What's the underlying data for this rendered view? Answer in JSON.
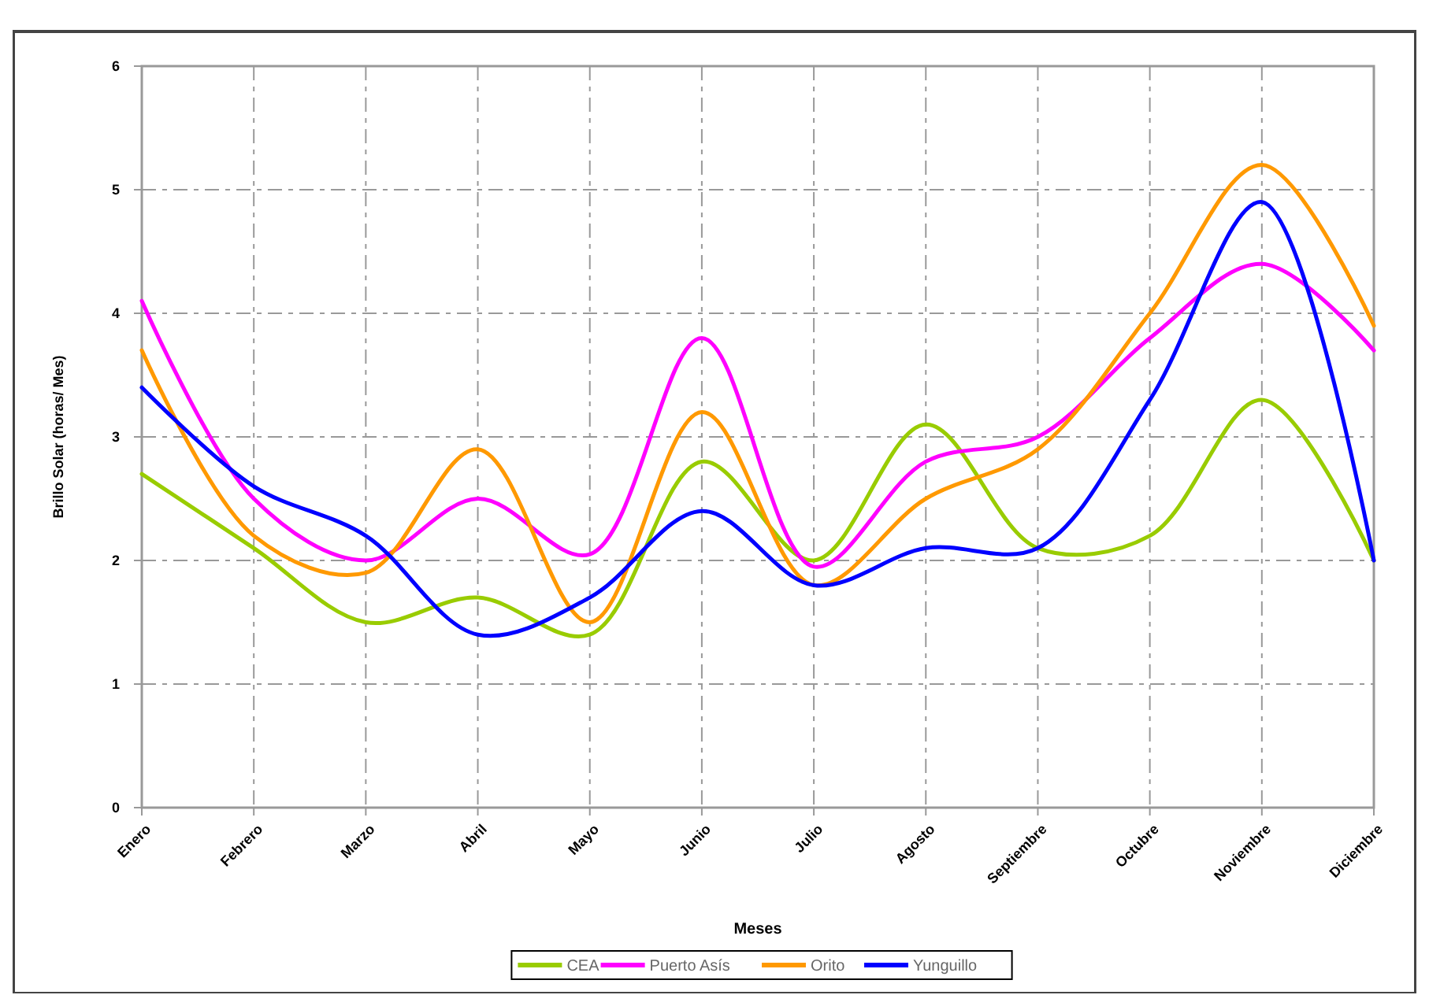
{
  "chart_data": {
    "type": "line",
    "xlabel": "Meses",
    "ylabel": "Brillo Solar (horas/ Mes)",
    "categories": [
      "Enero",
      "Febrero",
      "Marzo",
      "Abril",
      "Mayo",
      "Junio",
      "Julio",
      "Agosto",
      "Septiembre",
      "Octubre",
      "Noviembre",
      "Diciembre"
    ],
    "series": [
      {
        "name": "CEA",
        "color": "#99cc00",
        "values": [
          2.7,
          2.1,
          1.5,
          1.7,
          1.4,
          2.8,
          2.0,
          3.1,
          2.1,
          2.2,
          3.3,
          2.0
        ]
      },
      {
        "name": "Puerto Asís",
        "color": "#ff00ff",
        "values": [
          4.1,
          2.5,
          2.0,
          2.5,
          2.05,
          3.8,
          1.95,
          2.8,
          3.0,
          3.8,
          4.4,
          3.7
        ]
      },
      {
        "name": "Orito",
        "color": "#ff9900",
        "values": [
          3.7,
          2.2,
          1.9,
          2.9,
          1.5,
          3.2,
          1.8,
          2.5,
          2.9,
          4.0,
          5.2,
          3.9
        ]
      },
      {
        "name": "Yunguillo",
        "color": "#0000ff",
        "values": [
          3.4,
          2.6,
          2.2,
          1.4,
          1.7,
          2.4,
          1.8,
          2.1,
          2.1,
          3.3,
          4.9,
          2.0
        ]
      }
    ],
    "ylim": [
      0,
      6
    ],
    "yticks": [
      0,
      1,
      2,
      3,
      4,
      5,
      6
    ],
    "grid": true,
    "legend": "bottom",
    "marker": "none",
    "line_style": "solid"
  }
}
